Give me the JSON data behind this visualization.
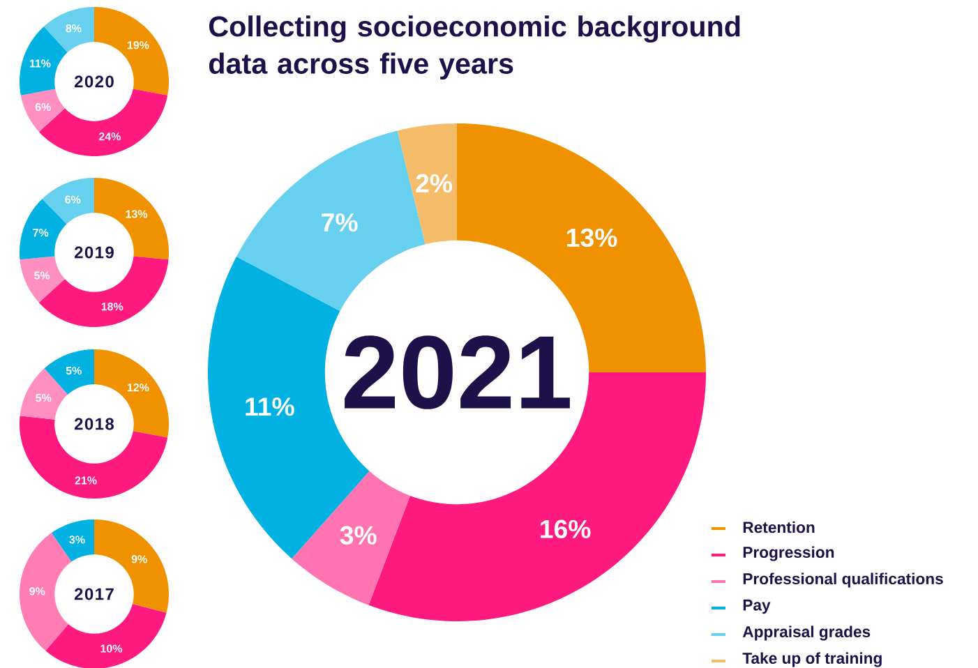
{
  "chart_data": [
    {
      "type": "donut",
      "title": "Collecting socioeconomic background data across five years",
      "annotations": [
        "2021"
      ],
      "categories": [
        "Retention",
        "Progression",
        "Professional qualifications",
        "Pay",
        "Appraisal grades",
        "Take up of training"
      ],
      "values": [
        13,
        16,
        3,
        11,
        7,
        2
      ],
      "value_labels": [
        "13%",
        "16%",
        "3%",
        "11%",
        "7%",
        "2%"
      ],
      "colors": [
        "#f09100",
        "#ff1a7f",
        "#ff74b0",
        "#00b1e1",
        "#66d0ee",
        "#f5bd6a"
      ],
      "legend": "bottom right"
    },
    {
      "type": "donut",
      "annotations": [
        "2020"
      ],
      "categories": [
        null,
        null,
        null,
        null,
        null
      ],
      "values": [
        19,
        24,
        6,
        11,
        8
      ],
      "value_labels": [
        "19%",
        "24%",
        "6%",
        "11%",
        "8%"
      ],
      "colors": [
        "#f09100",
        "#ff1a7f",
        "#ff8fc0",
        "#00b1e1",
        "#66d0ee"
      ]
    },
    {
      "type": "donut",
      "annotations": [
        "2019"
      ],
      "categories": [
        null,
        null,
        null,
        null,
        null
      ],
      "values": [
        13,
        18,
        5,
        7,
        6
      ],
      "value_labels": [
        "13%",
        "18%",
        "5%",
        "7%",
        "6%"
      ],
      "colors": [
        "#f09100",
        "#ff1a7f",
        "#ff8fc0",
        "#00b1e1",
        "#66d0ee"
      ]
    },
    {
      "type": "donut",
      "annotations": [
        "2018"
      ],
      "categories": [
        null,
        null,
        null,
        null
      ],
      "values": [
        12,
        21,
        5,
        5
      ],
      "value_labels": [
        "12%",
        "21%",
        "5%",
        "5%"
      ],
      "colors": [
        "#f09100",
        "#ff1a7f",
        "#ff8fc0",
        "#00b1e1"
      ]
    },
    {
      "type": "donut",
      "annotations": [
        "2017"
      ],
      "categories": [
        null,
        null,
        null,
        null
      ],
      "values": [
        9,
        10,
        9,
        3
      ],
      "value_labels": [
        "9%",
        "10%",
        "9%",
        "3%"
      ],
      "colors": [
        "#f09100",
        "#ff1a7f",
        "#ff7cb5",
        "#00b1e1"
      ]
    }
  ]
}
